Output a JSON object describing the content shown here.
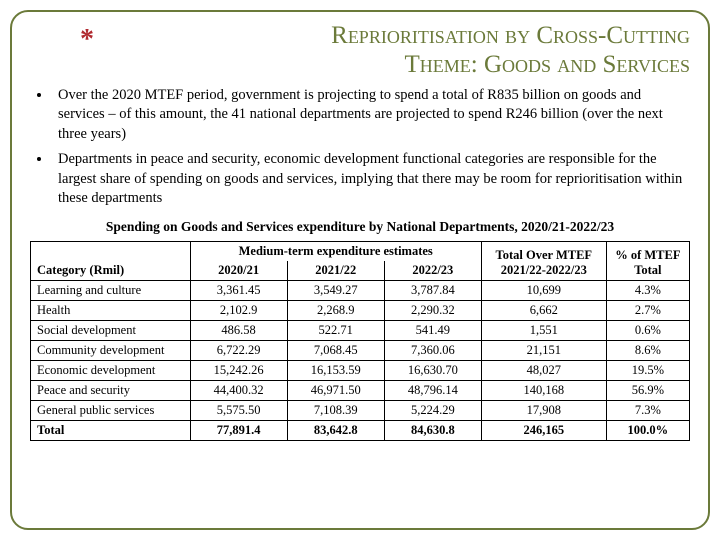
{
  "title_line1": "Reprioritisation by Cross-Cutting",
  "title_line2": "Theme: Goods and Services",
  "bullets": [
    "Over the 2020 MTEF period, government is projecting to spend a total of R835 billion on goods and services – of this amount, the 41 national departments are projected to spend R246 billion (over the next three years)",
    "Departments in peace and security, economic development functional categories are responsible for the largest share of spending on goods and services, implying that there may be room for reprioritisation within these departments"
  ],
  "table": {
    "caption": "Spending on Goods and Services expenditure by National Departments, 2020/21-2022/23",
    "category_label": "Category (Rmil)",
    "mte_label": "Medium-term expenditure estimates",
    "years": [
      "2020/21",
      "2021/22",
      "2022/23"
    ],
    "total_over_label": "Total Over MTEF 2021/22-2022/23",
    "pct_label": "% of MTEF Total",
    "rows": [
      {
        "cat": "Learning and culture",
        "c": [
          "3,361.45",
          "3,549.27",
          "3,787.84"
        ],
        "t": "10,699",
        "p": "4.3%"
      },
      {
        "cat": "Health",
        "c": [
          "2,102.9",
          "2,268.9",
          "2,290.32"
        ],
        "t": "6,662",
        "p": "2.7%"
      },
      {
        "cat": "Social development",
        "c": [
          "486.58",
          "522.71",
          "541.49"
        ],
        "t": "1,551",
        "p": "0.6%"
      },
      {
        "cat": "Community development",
        "c": [
          "6,722.29",
          "7,068.45",
          "7,360.06"
        ],
        "t": "21,151",
        "p": "8.6%"
      },
      {
        "cat": "Economic development",
        "c": [
          "15,242.26",
          "16,153.59",
          "16,630.70"
        ],
        "t": "48,027",
        "p": "19.5%"
      },
      {
        "cat": "Peace and security",
        "c": [
          "44,400.32",
          "46,971.50",
          "48,796.14"
        ],
        "t": "140,168",
        "p": "56.9%"
      },
      {
        "cat": "General public services",
        "c": [
          "5,575.50",
          "7,108.39",
          "5,224.29"
        ],
        "t": "17,908",
        "p": "7.3%"
      }
    ],
    "total": {
      "cat": "Total",
      "c": [
        "77,891.4",
        "83,642.8",
        "84,630.8"
      ],
      "t": "246,165",
      "p": "100.0%"
    }
  }
}
